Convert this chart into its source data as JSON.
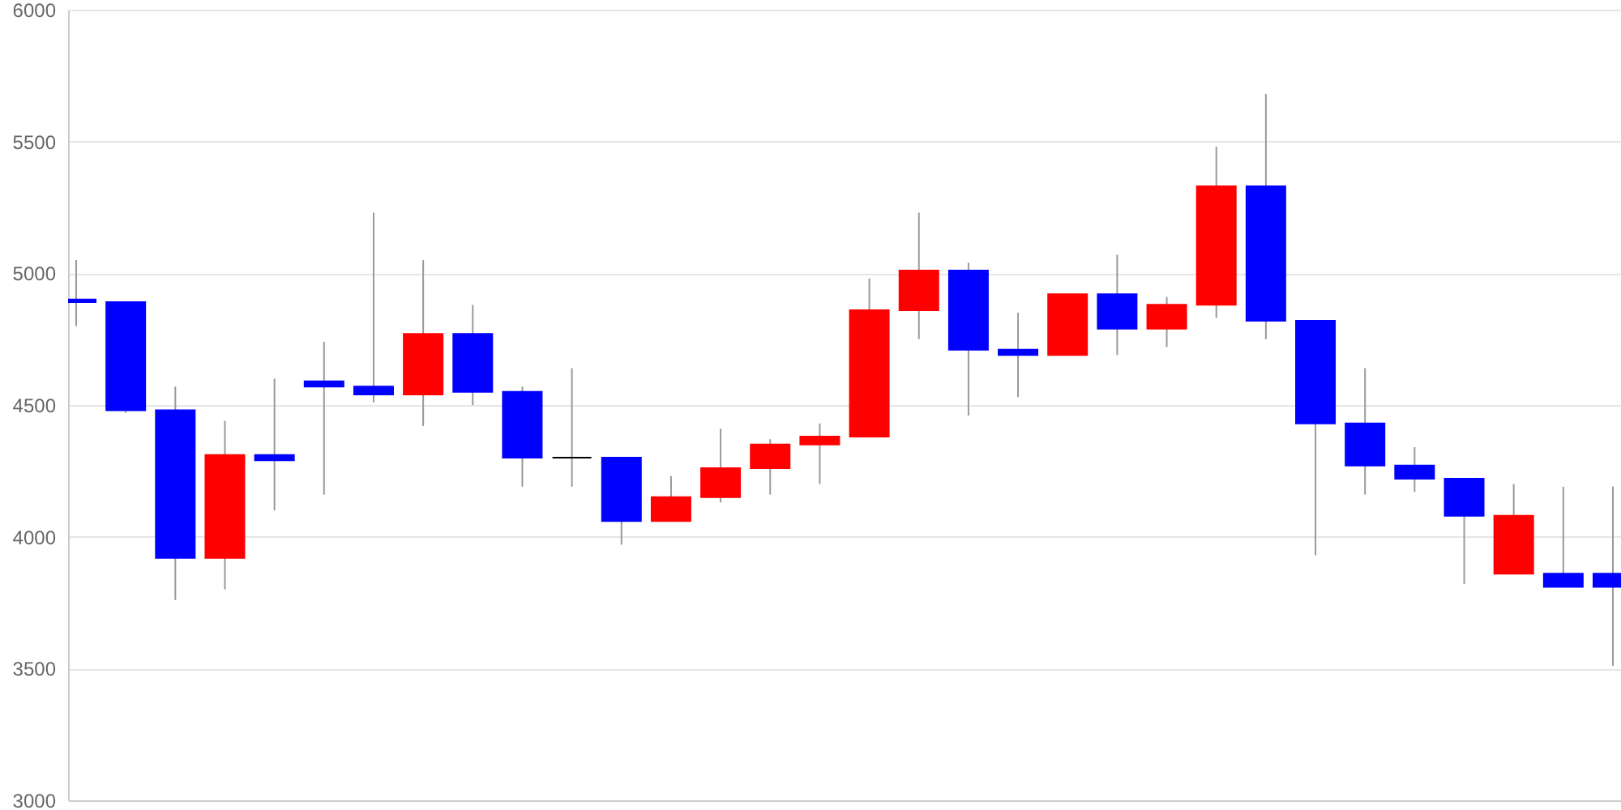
{
  "chart_data": {
    "type": "candlestick",
    "categories": [
      null,
      null,
      null,
      null,
      null,
      null,
      null,
      null,
      null,
      null,
      null,
      null,
      null,
      null,
      null,
      null,
      null,
      null,
      null,
      null,
      null,
      null,
      null,
      null,
      null,
      null,
      null,
      null,
      null,
      null,
      null,
      null
    ],
    "ohlc": [
      [
        4900,
        5050,
        4800,
        4890
      ],
      [
        4890,
        4890,
        4470,
        4480
      ],
      [
        4480,
        4570,
        3760,
        3920
      ],
      [
        3920,
        4440,
        3800,
        4310
      ],
      [
        4310,
        4600,
        4100,
        4290
      ],
      [
        4590,
        4740,
        4160,
        4570
      ],
      [
        4570,
        5230,
        4510,
        4540
      ],
      [
        4540,
        5050,
        4420,
        4770
      ],
      [
        4770,
        4880,
        4500,
        4550
      ],
      [
        4550,
        4570,
        4190,
        4300
      ],
      [
        4300,
        4640,
        4190,
        4300
      ],
      [
        4300,
        4300,
        3970,
        4060
      ],
      [
        4060,
        4230,
        4060,
        4150
      ],
      [
        4150,
        4410,
        4130,
        4260
      ],
      [
        4260,
        4370,
        4160,
        4350
      ],
      [
        4350,
        4430,
        4200,
        4380
      ],
      [
        4380,
        4980,
        4380,
        4860
      ],
      [
        4860,
        5230,
        4750,
        5010
      ],
      [
        5010,
        5040,
        4460,
        4710
      ],
      [
        4710,
        4850,
        4530,
        4690
      ],
      [
        4690,
        4920,
        4690,
        4920
      ],
      [
        4920,
        5070,
        4690,
        4790
      ],
      [
        4790,
        4910,
        4720,
        4880
      ],
      [
        4880,
        5480,
        4830,
        5330
      ],
      [
        5330,
        5680,
        4750,
        4820
      ],
      [
        4820,
        4820,
        3930,
        4430
      ],
      [
        4430,
        4640,
        4160,
        4270
      ],
      [
        4270,
        4340,
        4170,
        4220
      ],
      [
        4220,
        4220,
        3820,
        4080
      ],
      [
        3860,
        4200,
        3860,
        4080
      ],
      [
        3860,
        4190,
        3810,
        3810
      ],
      [
        3860,
        4190,
        3510,
        3810
      ]
    ],
    "colors": [
      "#0000ff",
      "#0000ff",
      "#0000ff",
      "#ff0000",
      "#0000ff",
      "#0000ff",
      "#0000ff",
      "#ff0000",
      "#0000ff",
      "#0000ff",
      "#000000",
      "#0000ff",
      "#ff0000",
      "#ff0000",
      "#ff0000",
      "#ff0000",
      "#ff0000",
      "#ff0000",
      "#0000ff",
      "#0000ff",
      "#ff0000",
      "#0000ff",
      "#ff0000",
      "#ff0000",
      "#0000ff",
      "#0000ff",
      "#0000ff",
      "#0000ff",
      "#0000ff",
      "#ff0000",
      "#0000ff",
      "#0000ff"
    ],
    "ylim": [
      3000,
      6000
    ],
    "yticks": [
      3000,
      3500,
      4000,
      4500,
      5000,
      5500,
      6000
    ],
    "grid": "y",
    "tick_labels": "y"
  }
}
